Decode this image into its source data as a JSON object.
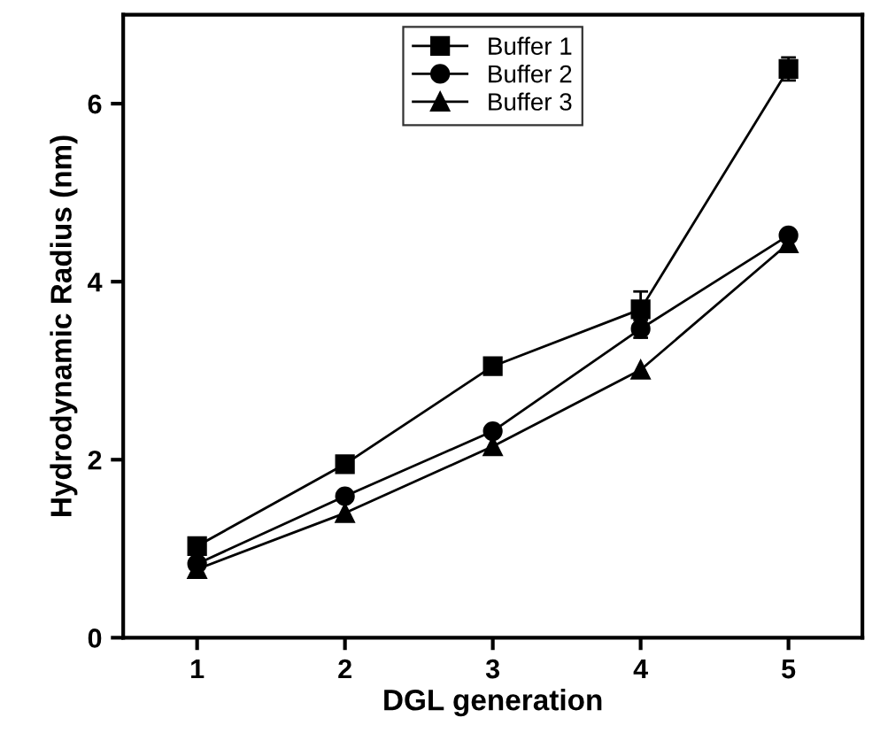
{
  "chart_data": {
    "type": "line",
    "xlabel": "DGL generation",
    "ylabel": "Hydrodynamic Radius (nm)",
    "x": [
      1,
      2,
      3,
      4,
      5
    ],
    "xlim": [
      0.5,
      5.5
    ],
    "xticks": [
      1,
      2,
      3,
      4,
      5
    ],
    "ylim": [
      0,
      7
    ],
    "yticks": [
      0,
      2,
      4,
      6
    ],
    "legend": "top",
    "grid": false,
    "series": [
      {
        "name": "Buffer 1",
        "color": "#000000",
        "marker": "square",
        "values": [
          1.03,
          1.95,
          3.05,
          3.69,
          6.39
        ],
        "errors": [
          null,
          null,
          null,
          0.2,
          0.13
        ]
      },
      {
        "name": "Buffer 2",
        "color": "#000000",
        "marker": "circle",
        "values": [
          0.83,
          1.59,
          2.32,
          3.47,
          4.52
        ],
        "errors": [
          null,
          null,
          null,
          0.1,
          null
        ]
      },
      {
        "name": "Buffer 3",
        "color": "#000000",
        "marker": "triangle",
        "values": [
          0.77,
          1.4,
          2.15,
          3.01,
          4.43
        ]
      }
    ]
  }
}
